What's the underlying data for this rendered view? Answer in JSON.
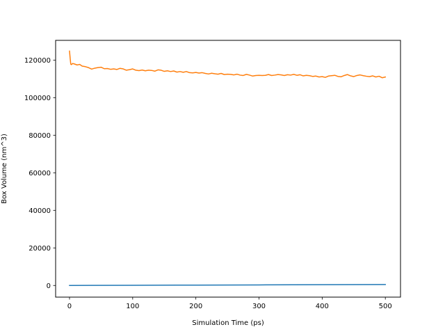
{
  "chart_data": {
    "type": "line",
    "title": "",
    "xlabel": "Simulation Time (ps)",
    "ylabel": "Box Volume (nm^3)",
    "xlim": [
      -22,
      524
    ],
    "ylim": [
      -6200,
      130500
    ],
    "xticks": [
      0,
      100,
      200,
      300,
      400,
      500
    ],
    "yticks": [
      0,
      20000,
      40000,
      60000,
      80000,
      100000,
      120000
    ],
    "grid": false,
    "legend": "none",
    "series": [
      {
        "color": "#1f77b4",
        "x": [
          0,
          100,
          200,
          300,
          400,
          500
        ],
        "values": [
          0,
          100,
          200,
          300,
          400,
          500
        ]
      },
      {
        "color": "#ff7f0e",
        "x": [
          0,
          1,
          2,
          3,
          5,
          8,
          12,
          16,
          20,
          25,
          30,
          35,
          40,
          45,
          50,
          55,
          60,
          65,
          70,
          75,
          80,
          85,
          90,
          95,
          100,
          105,
          110,
          115,
          120,
          125,
          130,
          135,
          140,
          145,
          150,
          155,
          160,
          165,
          170,
          175,
          180,
          185,
          190,
          195,
          200,
          205,
          210,
          215,
          220,
          225,
          230,
          235,
          240,
          245,
          250,
          255,
          260,
          265,
          270,
          275,
          280,
          285,
          290,
          295,
          300,
          305,
          310,
          315,
          320,
          325,
          330,
          335,
          340,
          345,
          350,
          355,
          360,
          365,
          370,
          375,
          380,
          385,
          390,
          395,
          400,
          405,
          410,
          415,
          420,
          425,
          430,
          435,
          440,
          445,
          450,
          455,
          460,
          465,
          470,
          475,
          480,
          485,
          490,
          495,
          500
        ],
        "values": [
          124800,
          121000,
          117800,
          117600,
          118200,
          117900,
          117400,
          117700,
          116800,
          116500,
          116000,
          115200,
          115700,
          116000,
          116200,
          115400,
          115500,
          115100,
          115300,
          115000,
          115600,
          115300,
          114600,
          114900,
          115300,
          114600,
          114400,
          114700,
          114300,
          114600,
          114500,
          114100,
          114800,
          114600,
          114000,
          114300,
          113900,
          114200,
          113600,
          113900,
          113500,
          113900,
          113300,
          113200,
          113400,
          113100,
          113300,
          112900,
          112600,
          113000,
          112700,
          112500,
          112900,
          112300,
          112500,
          112400,
          112100,
          112500,
          112000,
          111800,
          112400,
          112000,
          111500,
          111800,
          111900,
          111800,
          111900,
          112300,
          111800,
          112000,
          112300,
          112100,
          111800,
          112200,
          112000,
          112400,
          111900,
          112200,
          111600,
          111900,
          111700,
          111300,
          111500,
          111000,
          111200,
          110800,
          111500,
          111700,
          111900,
          111300,
          111100,
          111800,
          112300,
          111600,
          111200,
          111800,
          112100,
          111700,
          111400,
          111200,
          111600,
          111000,
          111400,
          110600,
          111000
        ]
      }
    ]
  }
}
